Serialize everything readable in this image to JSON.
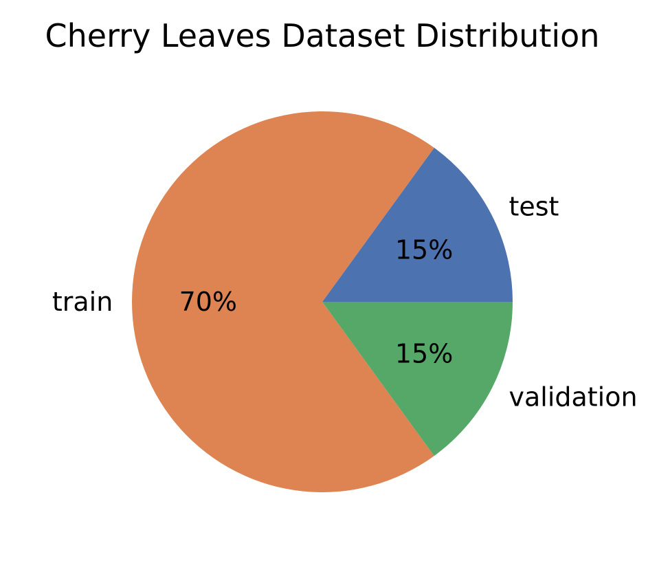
{
  "chart_data": {
    "type": "pie",
    "title": "Cherry Leaves Dataset Distribution",
    "slices": [
      {
        "label": "test",
        "value": 15,
        "pct_label": "15%",
        "color": "#4c72b0"
      },
      {
        "label": "train",
        "value": 70,
        "pct_label": "70%",
        "color": "#dd8452"
      },
      {
        "label": "validation",
        "value": 15,
        "pct_label": "15%",
        "color": "#55a868"
      }
    ],
    "start_angle_deg": 0,
    "direction": "counterclockwise",
    "legend": "none"
  }
}
